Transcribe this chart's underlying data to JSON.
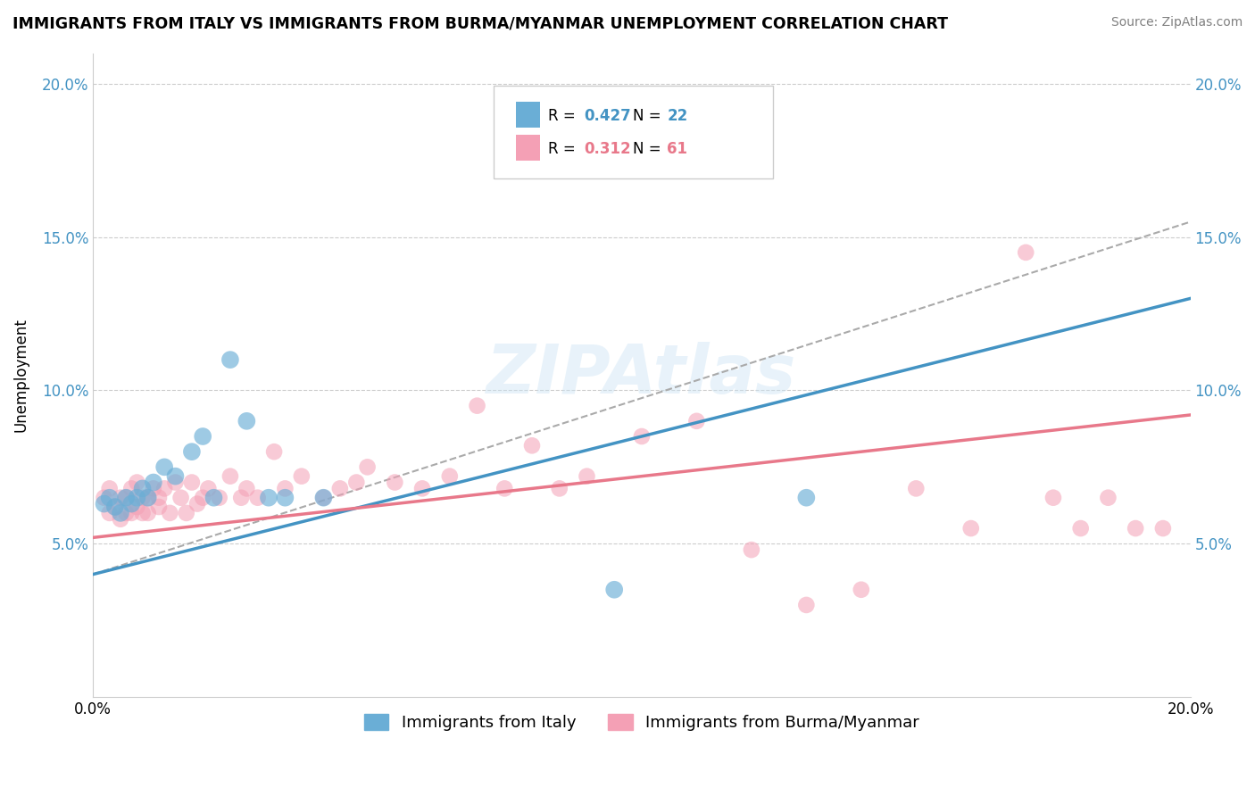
{
  "title": "IMMIGRANTS FROM ITALY VS IMMIGRANTS FROM BURMA/MYANMAR UNEMPLOYMENT CORRELATION CHART",
  "source": "Source: ZipAtlas.com",
  "ylabel": "Unemployment",
  "xlim": [
    0.0,
    0.2
  ],
  "ylim": [
    0.0,
    0.21
  ],
  "yticks": [
    0.05,
    0.1,
    0.15,
    0.2
  ],
  "ytick_labels": [
    "5.0%",
    "10.0%",
    "15.0%",
    "20.0%"
  ],
  "xticks": [
    0.0,
    0.2
  ],
  "xtick_labels": [
    "0.0%",
    "20.0%"
  ],
  "legend_italy_R": "0.427",
  "legend_italy_N": "22",
  "legend_burma_R": "0.312",
  "legend_burma_N": "61",
  "italy_color": "#6aaed6",
  "burma_color": "#f4a0b5",
  "italy_line_color": "#4393c3",
  "burma_line_color": "#e8788a",
  "dashed_line_color": "#aaaaaa",
  "watermark": "ZIPAtlas",
  "italy_scatter_x": [
    0.002,
    0.003,
    0.004,
    0.005,
    0.006,
    0.007,
    0.008,
    0.009,
    0.01,
    0.011,
    0.013,
    0.015,
    0.018,
    0.02,
    0.022,
    0.025,
    0.028,
    0.032,
    0.035,
    0.042,
    0.095,
    0.13
  ],
  "italy_scatter_y": [
    0.063,
    0.065,
    0.062,
    0.06,
    0.065,
    0.063,
    0.065,
    0.068,
    0.065,
    0.07,
    0.075,
    0.072,
    0.08,
    0.085,
    0.065,
    0.11,
    0.09,
    0.065,
    0.065,
    0.065,
    0.035,
    0.065
  ],
  "burma_scatter_x": [
    0.002,
    0.003,
    0.003,
    0.004,
    0.005,
    0.005,
    0.006,
    0.006,
    0.007,
    0.007,
    0.008,
    0.008,
    0.009,
    0.009,
    0.01,
    0.01,
    0.011,
    0.012,
    0.012,
    0.013,
    0.014,
    0.015,
    0.016,
    0.017,
    0.018,
    0.019,
    0.02,
    0.021,
    0.023,
    0.025,
    0.027,
    0.028,
    0.03,
    0.033,
    0.035,
    0.038,
    0.042,
    0.045,
    0.048,
    0.05,
    0.055,
    0.06,
    0.065,
    0.07,
    0.075,
    0.08,
    0.085,
    0.09,
    0.1,
    0.11,
    0.12,
    0.13,
    0.14,
    0.15,
    0.16,
    0.17,
    0.175,
    0.18,
    0.185,
    0.19,
    0.195
  ],
  "burma_scatter_y": [
    0.065,
    0.06,
    0.068,
    0.062,
    0.058,
    0.065,
    0.06,
    0.065,
    0.06,
    0.068,
    0.062,
    0.07,
    0.06,
    0.065,
    0.065,
    0.06,
    0.068,
    0.065,
    0.062,
    0.068,
    0.06,
    0.07,
    0.065,
    0.06,
    0.07,
    0.063,
    0.065,
    0.068,
    0.065,
    0.072,
    0.065,
    0.068,
    0.065,
    0.08,
    0.068,
    0.072,
    0.065,
    0.068,
    0.07,
    0.075,
    0.07,
    0.068,
    0.072,
    0.095,
    0.068,
    0.082,
    0.068,
    0.072,
    0.085,
    0.09,
    0.048,
    0.03,
    0.035,
    0.068,
    0.055,
    0.145,
    0.065,
    0.055,
    0.065,
    0.055,
    0.055
  ],
  "italy_line_x0": 0.0,
  "italy_line_y0": 0.04,
  "italy_line_x1": 0.2,
  "italy_line_y1": 0.13,
  "burma_line_x0": 0.0,
  "burma_line_y0": 0.052,
  "burma_line_x1": 0.2,
  "burma_line_y1": 0.092,
  "dash_line_x0": 0.0,
  "dash_line_y0": 0.04,
  "dash_line_x1": 0.2,
  "dash_line_y1": 0.155
}
